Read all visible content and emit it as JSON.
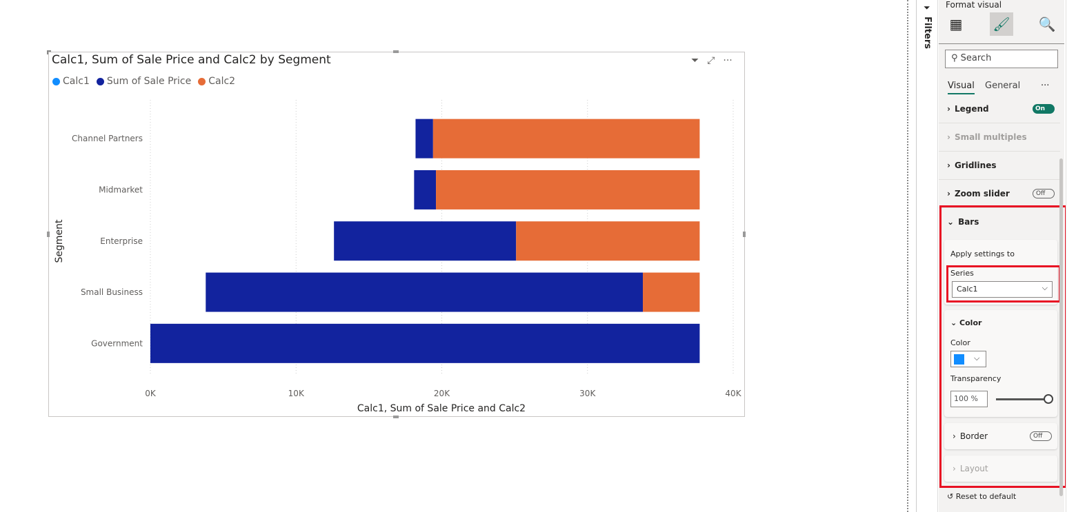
{
  "chart_data": {
    "type": "bar",
    "stacked": true,
    "orientation": "horizontal",
    "title": "Calc1, Sum of Sale Price and Calc2 by Segment",
    "xlabel": "Calc1, Sum of Sale Price and Calc2",
    "ylabel": "Segment",
    "categories": [
      "Channel Partners",
      "Midmarket",
      "Enterprise",
      "Small Business",
      "Government"
    ],
    "series": [
      {
        "name": "Calc1",
        "color": "#118DFF",
        "transparency": 100,
        "values": [
          18.2,
          18.1,
          12.6,
          3.8,
          0
        ]
      },
      {
        "name": "Sum of Sale Price",
        "color": "#12239E",
        "values": [
          1.2,
          1.5,
          12.5,
          30.0,
          37.7
        ]
      },
      {
        "name": "Calc2",
        "color": "#E66C37",
        "values": [
          18.3,
          18.1,
          12.6,
          3.9,
          0
        ]
      }
    ],
    "xlim": [
      0,
      40
    ],
    "xticks": [
      "0K",
      "10K",
      "20K",
      "30K",
      "40K"
    ],
    "grid": true,
    "legend": "top-left"
  },
  "filters_label": "Filters",
  "pane": {
    "title": "Format visual",
    "search_placeholder": "Search",
    "tabs": [
      "Visual",
      "General"
    ],
    "more": "···",
    "sections": {
      "legend": "Legend",
      "legend_toggle": "On",
      "small_multiples": "Small multiples",
      "gridlines": "Gridlines",
      "zoom_slider": "Zoom slider",
      "zoom_toggle": "Off",
      "bars": "Bars"
    },
    "apply_settings": "Apply settings to",
    "series_label": "Series",
    "series_value": "Calc1",
    "color_section": "Color",
    "color_label": "Color",
    "color_value": "#118DFF",
    "transparency_label": "Transparency",
    "transparency_value": "100 %",
    "transparency": 100,
    "border": "Border",
    "border_toggle": "Off",
    "layout": "Layout",
    "reset": "Reset to default"
  }
}
